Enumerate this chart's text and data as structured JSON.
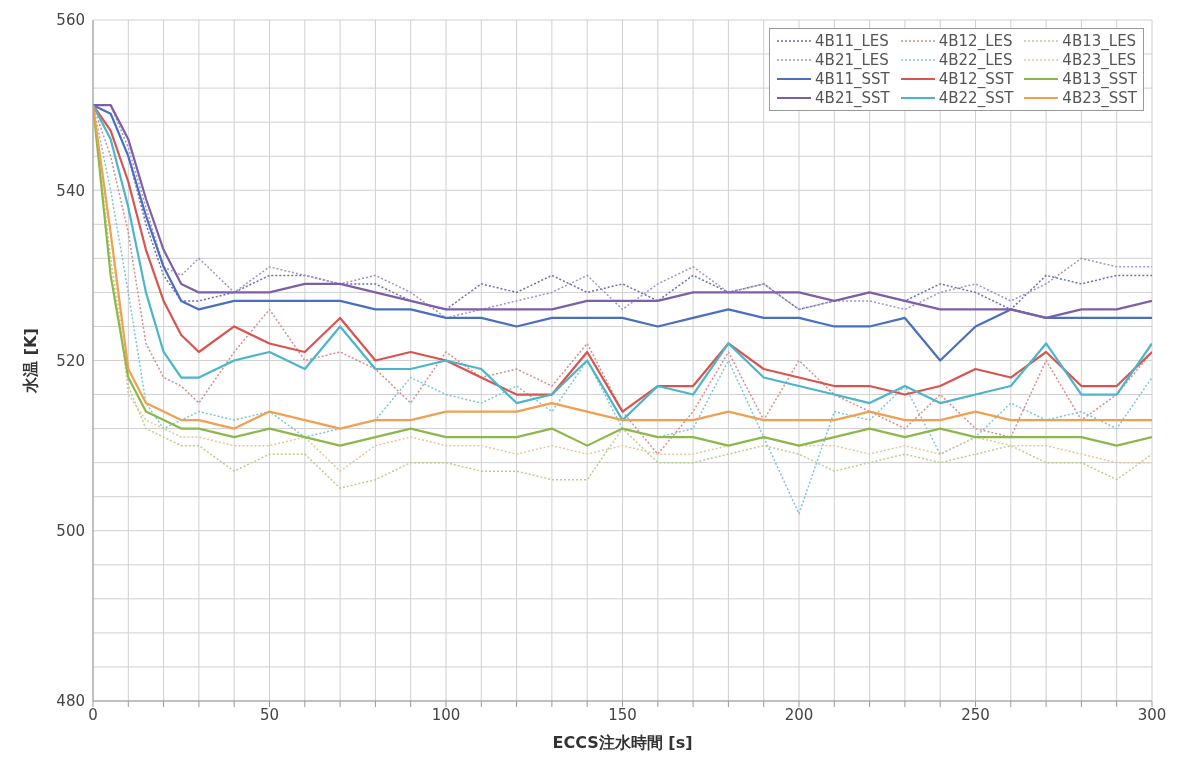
{
  "chart_data": {
    "type": "line",
    "xlabel": "ECCS注水時間 [s]",
    "ylabel": "水温 [K]",
    "x": [
      0,
      5,
      10,
      15,
      20,
      25,
      30,
      40,
      50,
      60,
      70,
      80,
      90,
      100,
      110,
      120,
      130,
      140,
      150,
      160,
      170,
      180,
      190,
      200,
      210,
      220,
      230,
      240,
      250,
      260,
      270,
      280,
      290,
      300
    ],
    "series": [
      {
        "name": "4B11_LES",
        "color": "#6a6fb0",
        "line_style": "dotted",
        "values": [
          550,
          549,
          544,
          536,
          530,
          527,
          527,
          528,
          530,
          530,
          529,
          529,
          527,
          526,
          529,
          528,
          530,
          528,
          529,
          527,
          530,
          528,
          529,
          526,
          527,
          528,
          527,
          529,
          528,
          526,
          530,
          529,
          530,
          530
        ]
      },
      {
        "name": "4B12_LES",
        "color": "#d98c8c",
        "line_style": "dotted",
        "values": [
          550,
          544,
          535,
          522,
          518,
          517,
          515,
          521,
          526,
          520,
          521,
          519,
          515,
          521,
          518,
          519,
          517,
          522,
          514,
          509,
          514,
          521,
          513,
          520,
          516,
          514,
          512,
          516,
          512,
          511,
          520,
          513,
          516,
          521
        ]
      },
      {
        "name": "4B13_LES",
        "color": "#b9cf8e",
        "line_style": "dotted",
        "values": [
          550,
          532,
          517,
          512,
          511,
          510,
          510,
          507,
          509,
          509,
          505,
          506,
          508,
          508,
          507,
          507,
          506,
          506,
          512,
          508,
          508,
          509,
          510,
          509,
          507,
          508,
          509,
          508,
          509,
          510,
          508,
          508,
          506,
          509
        ]
      },
      {
        "name": "4B21_LES",
        "color": "#a391c8",
        "line_style": "dotted",
        "values": [
          550,
          550,
          545,
          538,
          531,
          530,
          532,
          528,
          531,
          530,
          529,
          530,
          528,
          525,
          526,
          527,
          528,
          530,
          526,
          529,
          531,
          528,
          529,
          526,
          527,
          527,
          526,
          528,
          529,
          527,
          529,
          532,
          531,
          531
        ]
      },
      {
        "name": "4B22_LES",
        "color": "#7cc6d6",
        "line_style": "dotted",
        "values": [
          550,
          540,
          528,
          515,
          512,
          513,
          514,
          513,
          514,
          511,
          512,
          513,
          518,
          516,
          515,
          517,
          514,
          520,
          512,
          511,
          512,
          520,
          511,
          502,
          514,
          513,
          517,
          509,
          511,
          515,
          513,
          514,
          512,
          518
        ]
      },
      {
        "name": "4B23_LES",
        "color": "#e3c79c",
        "line_style": "dotted",
        "values": [
          550,
          535,
          516,
          513,
          512,
          511,
          511,
          510,
          510,
          511,
          507,
          510,
          511,
          510,
          510,
          509,
          510,
          509,
          510,
          509,
          509,
          510,
          511,
          510,
          510,
          509,
          510,
          509,
          511,
          510,
          510,
          509,
          508,
          508
        ]
      },
      {
        "name": "4B11_SST",
        "color": "#4a6fc0",
        "line_style": "solid",
        "values": [
          550,
          549,
          544,
          537,
          531,
          527,
          526,
          527,
          527,
          527,
          527,
          526,
          526,
          525,
          525,
          524,
          525,
          525,
          525,
          524,
          525,
          526,
          525,
          525,
          524,
          524,
          525,
          520,
          524,
          526,
          525,
          525,
          525,
          525
        ]
      },
      {
        "name": "4B12_SST",
        "color": "#d9534f",
        "line_style": "solid",
        "values": [
          550,
          547,
          541,
          533,
          527,
          523,
          521,
          524,
          522,
          521,
          525,
          520,
          521,
          520,
          518,
          516,
          516,
          521,
          514,
          517,
          517,
          522,
          519,
          518,
          517,
          517,
          516,
          517,
          519,
          518,
          521,
          517,
          517,
          521
        ]
      },
      {
        "name": "4B13_SST",
        "color": "#8cb84a",
        "line_style": "solid",
        "values": [
          550,
          530,
          518,
          514,
          513,
          512,
          512,
          511,
          512,
          511,
          510,
          511,
          512,
          511,
          511,
          511,
          512,
          510,
          512,
          511,
          511,
          510,
          511,
          510,
          511,
          512,
          511,
          512,
          511,
          511,
          511,
          511,
          510,
          511
        ]
      },
      {
        "name": "4B21_SST",
        "color": "#7d5fa8",
        "line_style": "solid",
        "values": [
          550,
          550,
          546,
          539,
          533,
          529,
          528,
          528,
          528,
          529,
          529,
          528,
          527,
          526,
          526,
          526,
          526,
          527,
          527,
          527,
          528,
          528,
          528,
          528,
          527,
          528,
          527,
          526,
          526,
          526,
          525,
          526,
          526,
          527
        ]
      },
      {
        "name": "4B22_SST",
        "color": "#4bb5c9",
        "line_style": "solid",
        "values": [
          550,
          546,
          538,
          528,
          521,
          518,
          518,
          520,
          521,
          519,
          524,
          519,
          519,
          520,
          519,
          515,
          516,
          520,
          513,
          517,
          516,
          522,
          518,
          517,
          516,
          515,
          517,
          515,
          516,
          517,
          522,
          516,
          516,
          522
        ]
      },
      {
        "name": "4B23_SST",
        "color": "#f0a050",
        "line_style": "solid",
        "values": [
          550,
          535,
          519,
          515,
          514,
          513,
          513,
          512,
          514,
          513,
          512,
          513,
          513,
          514,
          514,
          514,
          515,
          514,
          513,
          513,
          513,
          514,
          513,
          513,
          513,
          514,
          513,
          513,
          514,
          513,
          513,
          513,
          513,
          513
        ]
      }
    ],
    "xlim": [
      0,
      300
    ],
    "xticks": [
      0,
      {
        "value": 10,
        "label": null
      },
      {
        "value": 20,
        "label": null
      },
      {
        "value": 30,
        "label": null
      },
      {
        "value": 40,
        "label": null
      },
      50,
      {
        "value": 60,
        "label": null
      },
      {
        "value": 70,
        "label": null
      },
      {
        "value": 80,
        "label": null
      },
      {
        "value": 90,
        "label": null
      },
      100,
      {
        "value": 110,
        "label": null
      },
      {
        "value": 120,
        "label": null
      },
      {
        "value": 130,
        "label": null
      },
      {
        "value": 140,
        "label": null
      },
      150,
      {
        "value": 160,
        "label": null
      },
      {
        "value": 170,
        "label": null
      },
      {
        "value": 180,
        "label": null
      },
      {
        "value": 190,
        "label": null
      },
      200,
      {
        "value": 210,
        "label": null
      },
      {
        "value": 220,
        "label": null
      },
      {
        "value": 230,
        "label": null
      },
      {
        "value": 240,
        "label": null
      },
      250,
      {
        "value": 260,
        "label": null
      },
      {
        "value": 270,
        "label": null
      },
      {
        "value": 280,
        "label": null
      },
      {
        "value": 290,
        "label": null
      },
      300
    ],
    "ylim": [
      480,
      560
    ],
    "yticks": [
      480,
      {
        "value": 484,
        "label": null
      },
      {
        "value": 488,
        "label": null
      },
      {
        "value": 492,
        "label": null
      },
      {
        "value": 496,
        "label": null
      },
      500,
      {
        "value": 504,
        "label": null
      },
      {
        "value": 508,
        "label": null
      },
      {
        "value": 512,
        "label": null
      },
      {
        "value": 516,
        "label": null
      },
      520,
      {
        "value": 524,
        "label": null
      },
      {
        "value": 528,
        "label": null
      },
      {
        "value": 532,
        "label": null
      },
      {
        "value": 536,
        "label": null
      },
      540,
      {
        "value": 544,
        "label": null
      },
      {
        "value": 548,
        "label": null
      },
      {
        "value": 552,
        "label": null
      },
      {
        "value": 556,
        "label": null
      },
      560
    ],
    "grid": true,
    "legend": "top right"
  }
}
